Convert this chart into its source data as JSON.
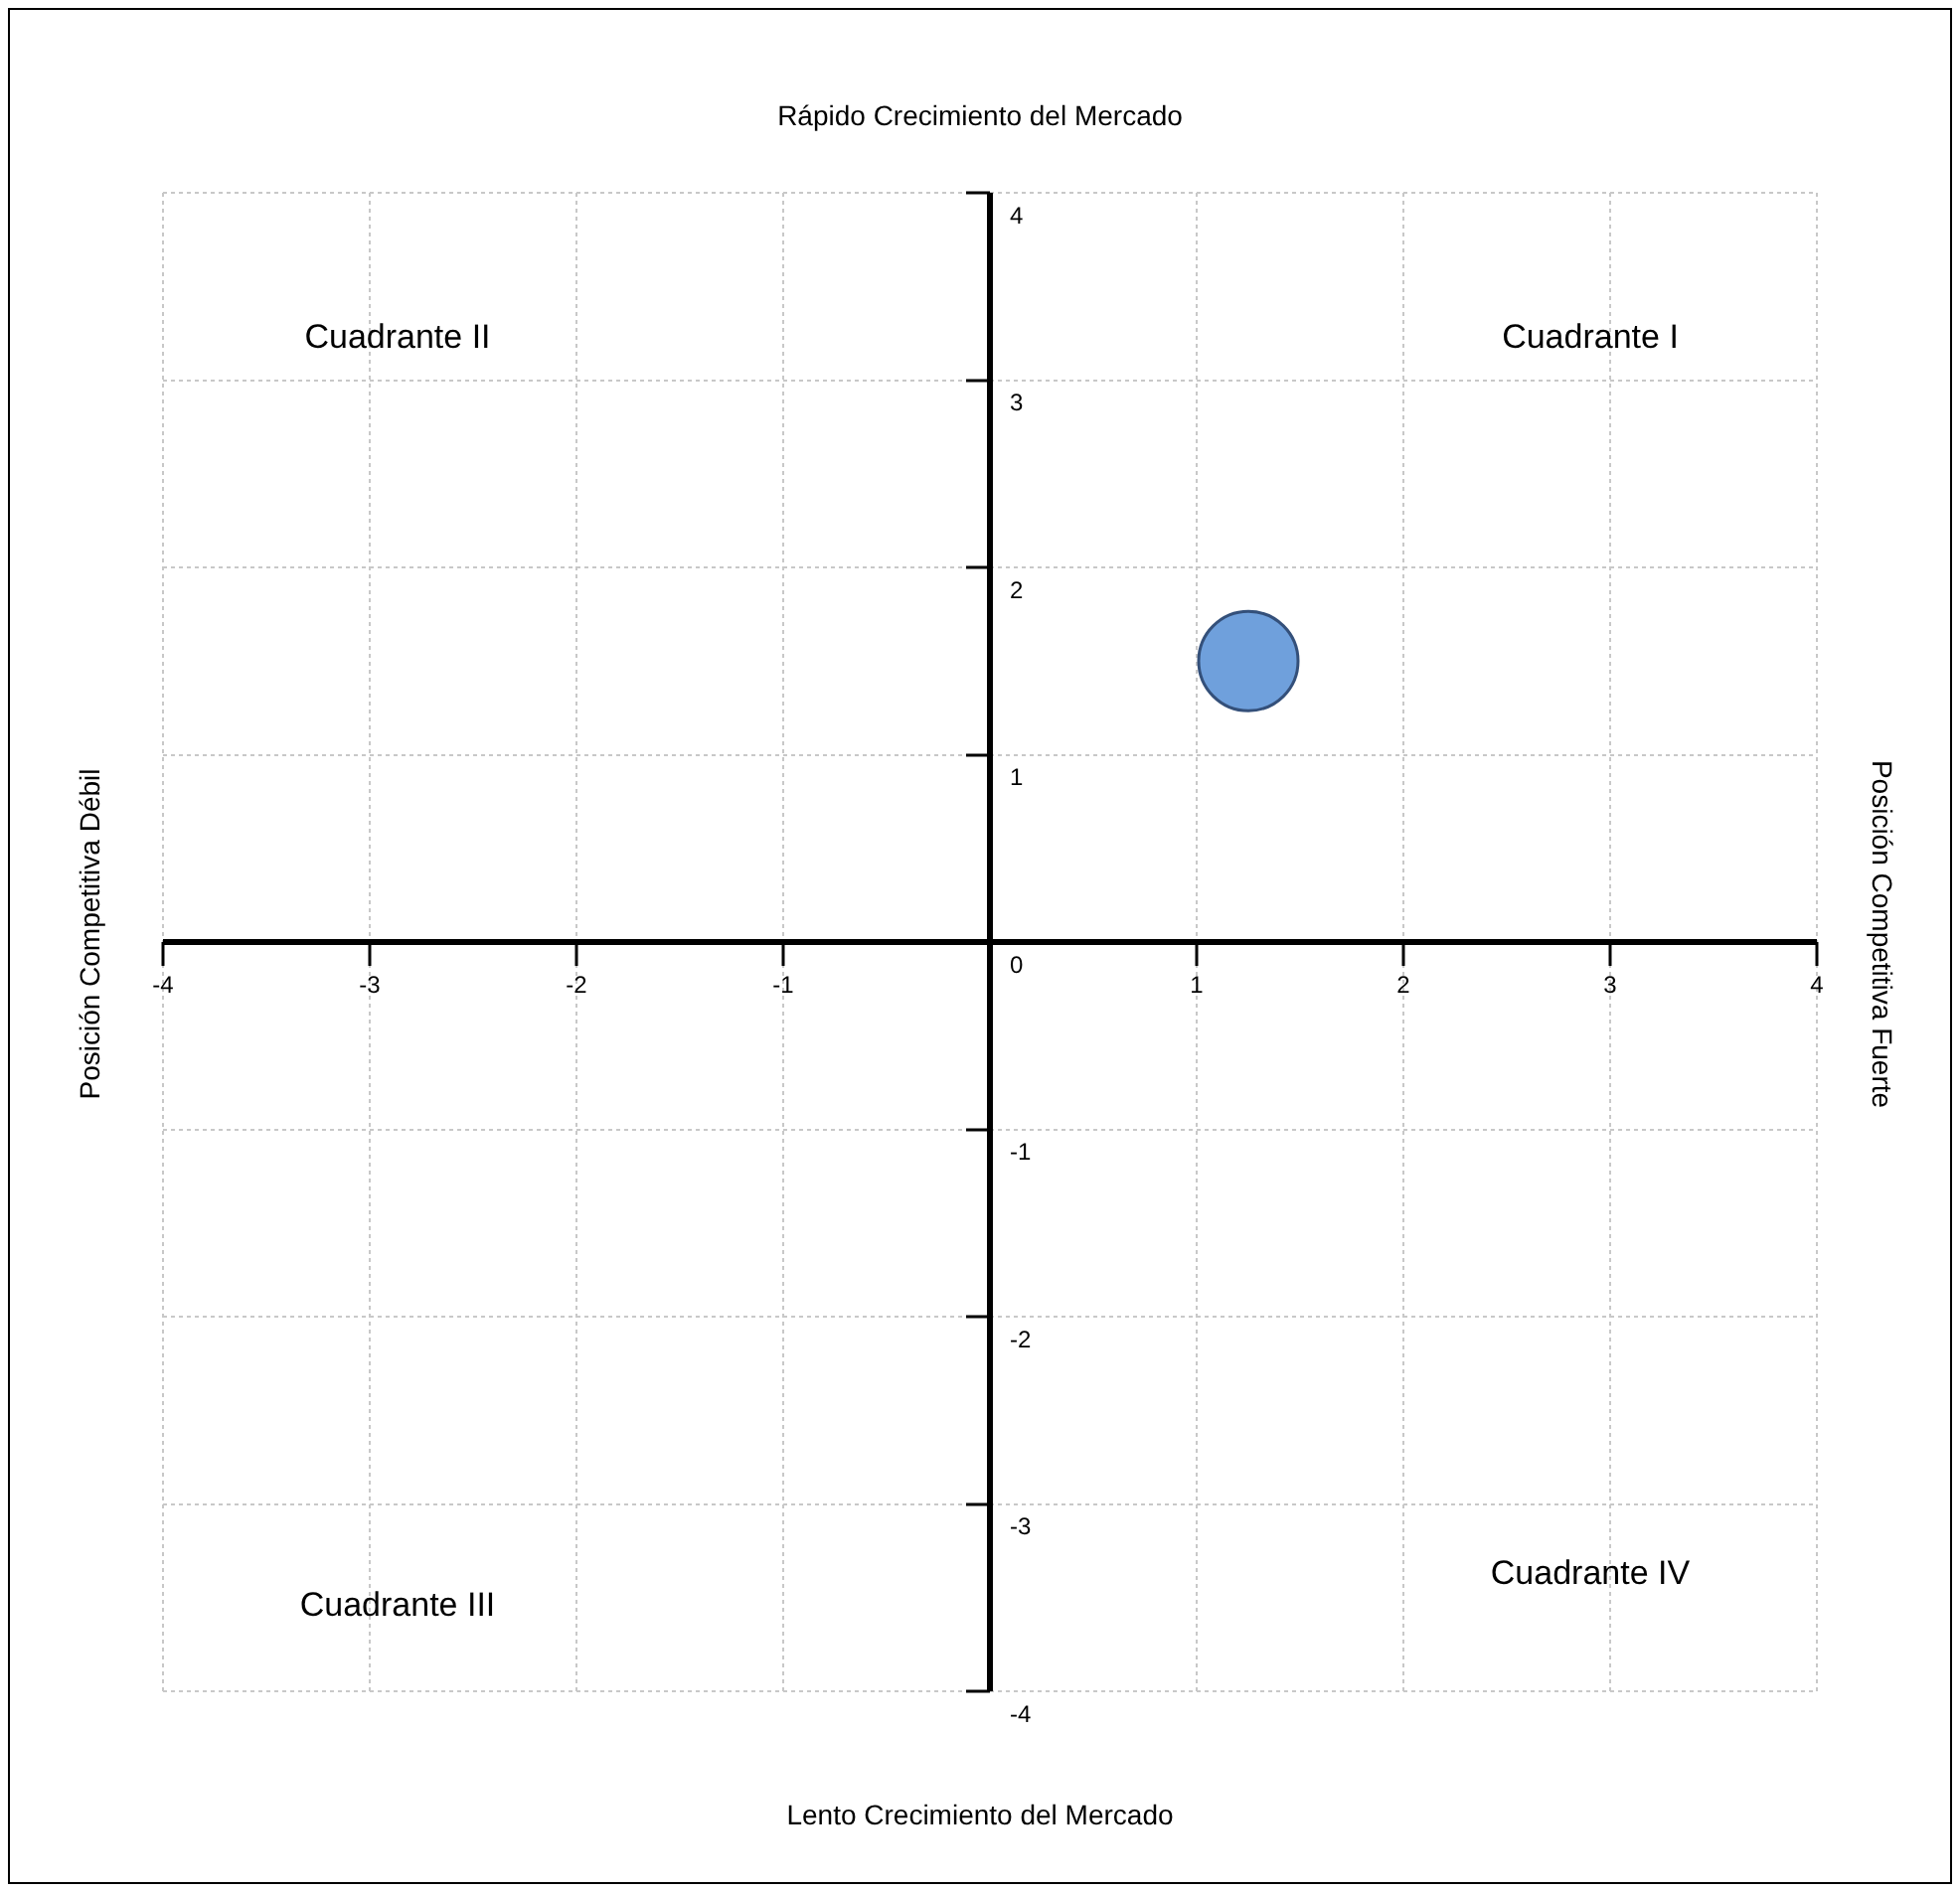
{
  "chart_data": {
    "type": "scatter",
    "x": [
      1.25
    ],
    "values": [
      1.5
    ],
    "color": "#6fa0dc",
    "marker": "circle",
    "xlim": [
      -4,
      4
    ],
    "xticks": [
      -4,
      -3,
      -2,
      -1,
      1,
      2,
      3,
      4
    ],
    "ylim": [
      -4,
      4
    ],
    "yticks": [
      -4,
      -3,
      -2,
      -1,
      0,
      1,
      2,
      3,
      4
    ],
    "grid": true,
    "legend": false,
    "annotations": [
      "Rápido Crecimiento del Mercado",
      "Lento Crecimiento del Mercado",
      "Posición Competitiva Débil",
      "Posición Competitiva Fuerte",
      "Cuadrante II",
      "Cuadrante I",
      "Cuadrante III",
      "Cuadrante IV"
    ]
  }
}
